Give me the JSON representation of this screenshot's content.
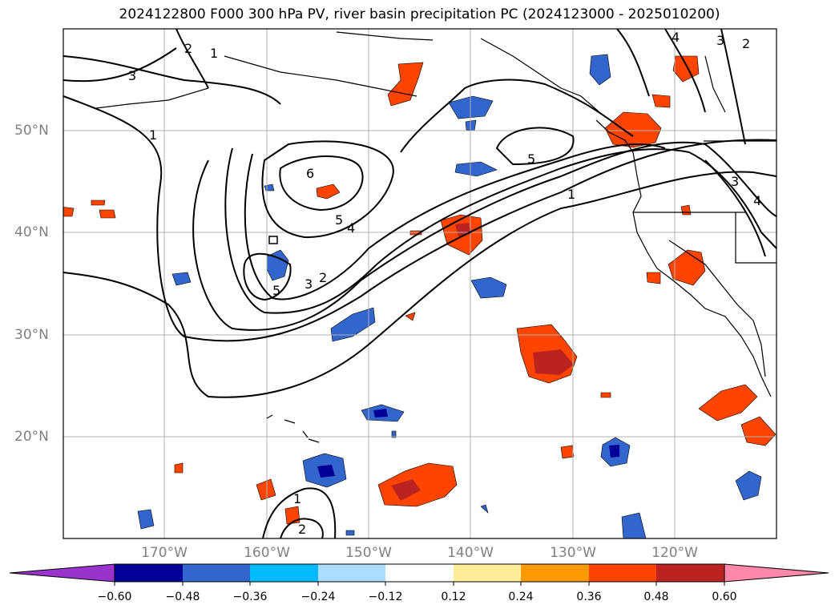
{
  "title": "2024122800 F000 300 hPa PV, river basin precipitation PC (2024123000 - 2025010200)",
  "longitude_labels": [
    "170°W",
    "160°W",
    "150°W",
    "140°W",
    "130°W",
    "120°W"
  ],
  "latitude_labels": [
    "50°N",
    "40°N",
    "30°N",
    "20°N"
  ],
  "pv_contour_labels": [
    "3",
    "2",
    "1",
    "1",
    "6",
    "5",
    "4",
    "5",
    "3",
    "2",
    "5",
    "1",
    "4",
    "3",
    "2",
    "1",
    "2",
    "4",
    "3"
  ],
  "colorbar": {
    "tick_labels": [
      "−0.60",
      "−0.48",
      "−0.36",
      "−0.24",
      "−0.12",
      "0.12",
      "0.24",
      "0.36",
      "0.48",
      "0.60"
    ],
    "colors": [
      "#9933cc",
      "#000099",
      "#3366cc",
      "#00bbff",
      "#aaddff",
      "#ffffff",
      "#ffee99",
      "#ff9900",
      "#ff4400",
      "#bb2222",
      "#ff88aa"
    ]
  }
}
